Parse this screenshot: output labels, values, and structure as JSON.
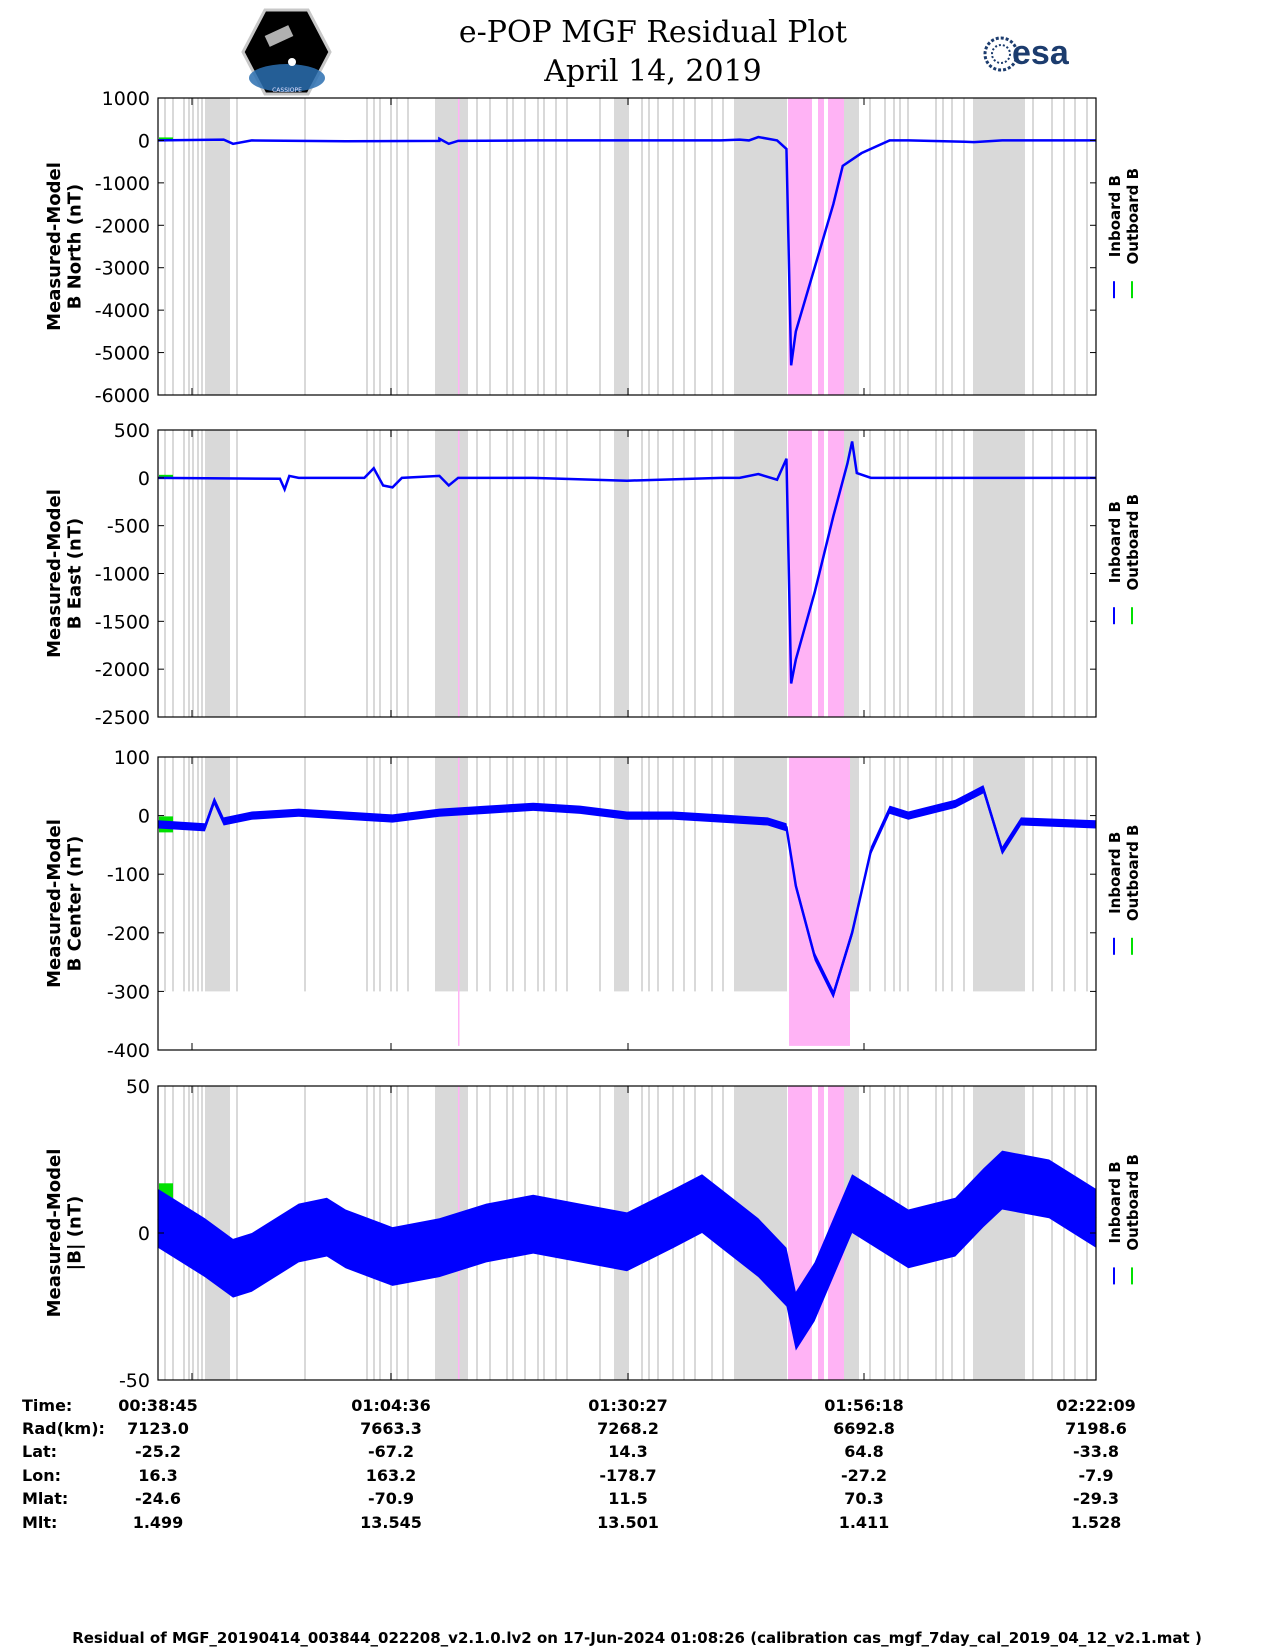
{
  "header": {
    "title_line1": "e-POP MGF Residual Plot",
    "title_line2": "April 14, 2019",
    "esa_label": "esa",
    "cassiope_label": "CASSIOPE"
  },
  "legend": {
    "inboard": "Inboard B",
    "outboard": "Outboard B",
    "inboard_color": "#0000ff",
    "outboard_color": "#00e000"
  },
  "colors": {
    "shade_gray": "#d9d9d9",
    "shade_pink": "#ffb3f5"
  },
  "chart_data": [
    {
      "type": "line",
      "name": "B North",
      "ylabel": [
        "Measured-Model",
        "B North (nT)"
      ],
      "ylim": [
        -6000,
        1000
      ],
      "yticks": [
        "1000",
        "0",
        "-1000",
        "-2000",
        "-3000",
        "-4000",
        "-5000",
        "-6000"
      ],
      "x": [
        0,
        0.07,
        0.08,
        0.1,
        0.2,
        0.3,
        0.3,
        0.31,
        0.32,
        0.4,
        0.6,
        0.62,
        0.63,
        0.64,
        0.66,
        0.67,
        0.675,
        0.68,
        0.7,
        0.72,
        0.73,
        0.75,
        0.78,
        0.8,
        0.86,
        0.87,
        0.9,
        1
      ],
      "series": [
        {
          "name": "Inboard B",
          "values": [
            0,
            20,
            -80,
            0,
            -20,
            -10,
            40,
            -80,
            -10,
            0,
            0,
            20,
            0,
            80,
            0,
            -200,
            -5300,
            -4500,
            -3000,
            -1500,
            -600,
            -300,
            0,
            0,
            -30,
            -40,
            0,
            0
          ]
        }
      ]
    },
    {
      "type": "line",
      "name": "B East",
      "ylabel": [
        "Measured-Model",
        "B East (nT)"
      ],
      "ylim": [
        -2500,
        500
      ],
      "yticks": [
        "500",
        "0",
        "-500",
        "-1000",
        "-1500",
        "-2000",
        "-2500"
      ],
      "x": [
        0,
        0.13,
        0.135,
        0.14,
        0.15,
        0.22,
        0.23,
        0.24,
        0.25,
        0.26,
        0.3,
        0.31,
        0.32,
        0.4,
        0.5,
        0.6,
        0.62,
        0.64,
        0.66,
        0.67,
        0.675,
        0.68,
        0.7,
        0.72,
        0.735,
        0.74,
        0.745,
        0.76,
        0.8,
        1
      ],
      "series": [
        {
          "name": "Inboard B",
          "values": [
            0,
            -10,
            -120,
            20,
            0,
            0,
            100,
            -80,
            -100,
            0,
            20,
            -80,
            0,
            0,
            -30,
            0,
            0,
            40,
            -20,
            200,
            -2150,
            -1900,
            -1200,
            -400,
            150,
            380,
            50,
            0,
            0,
            0
          ]
        }
      ]
    },
    {
      "type": "line",
      "name": "B Center",
      "ylabel": [
        "Measured-Model",
        "B Center (nT)"
      ],
      "ylim": [
        -400,
        100
      ],
      "yticks": [
        "100",
        "0",
        "-100",
        "-200",
        "-300",
        "-400"
      ],
      "x": [
        0,
        0.05,
        0.06,
        0.07,
        0.1,
        0.15,
        0.2,
        0.25,
        0.3,
        0.35,
        0.4,
        0.45,
        0.5,
        0.55,
        0.6,
        0.65,
        0.67,
        0.68,
        0.7,
        0.72,
        0.74,
        0.76,
        0.78,
        0.8,
        0.85,
        0.88,
        0.9,
        0.92,
        1
      ],
      "series": [
        {
          "name": "Inboard B",
          "values": [
            -15,
            -20,
            25,
            -10,
            0,
            5,
            0,
            -5,
            5,
            10,
            15,
            10,
            0,
            0,
            -5,
            -10,
            -20,
            -120,
            -240,
            -305,
            -200,
            -60,
            10,
            0,
            20,
            45,
            -60,
            -10,
            -15
          ]
        }
      ]
    },
    {
      "type": "line",
      "name": "|B|",
      "ylabel": [
        "Measured-Model",
        "|B| (nT)"
      ],
      "ylim": [
        -50,
        50
      ],
      "yticks": [
        "50",
        "0",
        "-50"
      ],
      "x": [
        0,
        0.05,
        0.08,
        0.1,
        0.15,
        0.18,
        0.2,
        0.25,
        0.3,
        0.35,
        0.4,
        0.45,
        0.5,
        0.55,
        0.58,
        0.6,
        0.64,
        0.67,
        0.68,
        0.7,
        0.74,
        0.75,
        0.8,
        0.85,
        0.88,
        0.9,
        0.95,
        1
      ],
      "series": [
        {
          "name": "Inboard B",
          "values": [
            5,
            -5,
            -12,
            -10,
            0,
            2,
            -2,
            -8,
            -5,
            0,
            3,
            0,
            -3,
            5,
            10,
            5,
            -5,
            -15,
            -30,
            -20,
            10,
            8,
            -2,
            2,
            12,
            18,
            15,
            5
          ]
        }
      ]
    }
  ],
  "x_info": {
    "labels": [
      "Time:",
      "Rad(km):",
      "Lat:",
      "Lon:",
      "Mlat:",
      "Mlt:"
    ],
    "columns": [
      {
        "values": [
          "00:38:45",
          "7123.0",
          "-25.2",
          "16.3",
          "-24.6",
          "1.499"
        ]
      },
      {
        "values": [
          "01:04:36",
          "7663.3",
          "-67.2",
          "163.2",
          "-70.9",
          "13.545"
        ]
      },
      {
        "values": [
          "01:30:27",
          "7268.2",
          "14.3",
          "-178.7",
          "11.5",
          "13.501"
        ]
      },
      {
        "values": [
          "01:56:18",
          "6692.8",
          "64.8",
          "-27.2",
          "70.3",
          "1.411"
        ]
      },
      {
        "values": [
          "02:22:09",
          "7198.6",
          "-33.8",
          "-7.9",
          "-29.3",
          "1.528"
        ]
      }
    ]
  },
  "footer": "Residual of MGF_20190414_003844_022208_v2.1.0.lv2 on 17-Jun-2024 01:08:26 (calibration cas_mgf_7day_cal_2019_04_12_v2.1.mat )"
}
